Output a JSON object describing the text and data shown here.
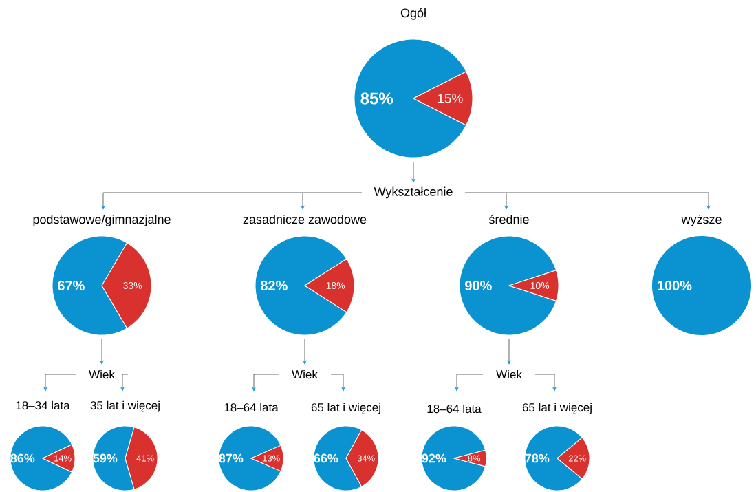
{
  "chart_data": [
    {
      "type": "pie",
      "title": "Ogół",
      "categories": [
        null,
        null
      ],
      "values": [
        85,
        15
      ],
      "colors": [
        "#0a93d0",
        "#d9322e"
      ],
      "value_labels": [
        "85%",
        "15%"
      ],
      "annotations": [
        "Wykształcenie"
      ]
    },
    {
      "type": "pie",
      "title": "podstawowe/gimnazjalne",
      "categories": [
        null,
        null
      ],
      "values": [
        67,
        33
      ],
      "colors": [
        "#0a93d0",
        "#d9322e"
      ],
      "value_labels": [
        "67%",
        "33%"
      ],
      "annotations": [
        "Wiek"
      ]
    },
    {
      "type": "pie",
      "title": "zasadnicze zawodowe",
      "categories": [
        null,
        null
      ],
      "values": [
        82,
        18
      ],
      "colors": [
        "#0a93d0",
        "#d9322e"
      ],
      "value_labels": [
        "82%",
        "18%"
      ],
      "annotations": [
        "Wiek"
      ]
    },
    {
      "type": "pie",
      "title": "średnie",
      "categories": [
        null,
        null
      ],
      "values": [
        90,
        10
      ],
      "colors": [
        "#0a93d0",
        "#d9322e"
      ],
      "value_labels": [
        "90%",
        "10%"
      ],
      "annotations": [
        "Wiek"
      ]
    },
    {
      "type": "pie",
      "title": "wyższe",
      "categories": [
        null,
        null
      ],
      "values": [
        100,
        0
      ],
      "colors": [
        "#0a93d0",
        "#d9322e"
      ],
      "value_labels": [
        "100%",
        null
      ]
    },
    {
      "type": "pie",
      "title": "18–34 lata",
      "categories": [
        null,
        null
      ],
      "values": [
        86,
        14
      ],
      "colors": [
        "#0a93d0",
        "#d9322e"
      ],
      "value_labels": [
        "86%",
        "14%"
      ]
    },
    {
      "type": "pie",
      "title": "35 lat i więcej",
      "categories": [
        null,
        null
      ],
      "values": [
        59,
        41
      ],
      "colors": [
        "#0a93d0",
        "#d9322e"
      ],
      "value_labels": [
        "59%",
        "41%"
      ]
    },
    {
      "type": "pie",
      "title": "18–64 lata",
      "categories": [
        null,
        null
      ],
      "values": [
        87,
        13
      ],
      "colors": [
        "#0a93d0",
        "#d9322e"
      ],
      "value_labels": [
        "87%",
        "13%"
      ]
    },
    {
      "type": "pie",
      "title": "65 lat i więcej",
      "categories": [
        null,
        null
      ],
      "values": [
        66,
        34
      ],
      "colors": [
        "#0a93d0",
        "#d9322e"
      ],
      "value_labels": [
        "66%",
        "34%"
      ]
    },
    {
      "type": "pie",
      "title": "18–64 lata",
      "categories": [
        null,
        null
      ],
      "values": [
        92,
        8
      ],
      "colors": [
        "#0a93d0",
        "#d9322e"
      ],
      "value_labels": [
        "92%",
        "8%"
      ]
    },
    {
      "type": "pie",
      "title": "65 lat i więcej",
      "categories": [
        null,
        null
      ],
      "values": [
        78,
        22
      ],
      "colors": [
        "#0a93d0",
        "#d9322e"
      ],
      "value_labels": [
        "78%",
        "22%"
      ]
    }
  ]
}
